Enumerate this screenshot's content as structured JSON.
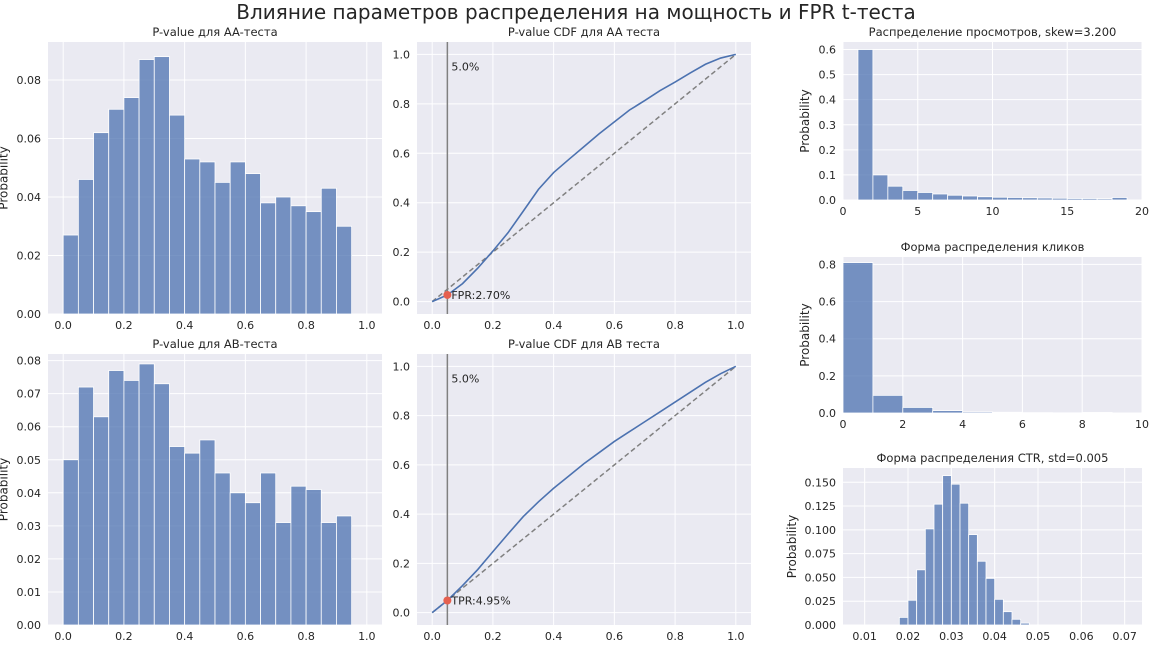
{
  "figure": {
    "title": "Влияние параметров распределения на мощность и FPR t-теста",
    "colors": {
      "face": "#eaeaf2",
      "grid": "#ffffff",
      "bar": "#4c72b0",
      "bar_alpha": 0.75,
      "line": "#4c72b0",
      "diag": "#808080",
      "vline": "#808080",
      "marker": "#e5604f",
      "text": "#262626"
    }
  },
  "chart_data": [
    {
      "id": "pv-hist-aa",
      "type": "bar",
      "title": "P-value для AA-теста",
      "ylabel": "Probability",
      "xlim": [
        -0.05,
        1.05
      ],
      "ylim": [
        0,
        0.093
      ],
      "xticks": [
        0.0,
        0.2,
        0.4,
        0.6,
        0.8,
        1.0
      ],
      "xtick_labels": [
        "0.0",
        "0.2",
        "0.4",
        "0.6",
        "0.8",
        "1.0"
      ],
      "yticks": [
        0.0,
        0.02,
        0.04,
        0.06,
        0.08
      ],
      "ytick_labels": [
        "0.00",
        "0.02",
        "0.04",
        "0.06",
        "0.08"
      ],
      "bin_start": 0.0,
      "bin_width": 0.05,
      "values": [
        0.027,
        0.046,
        0.062,
        0.07,
        0.074,
        0.087,
        0.088,
        0.068,
        0.053,
        0.052,
        0.045,
        0.052,
        0.048,
        0.038,
        0.04,
        0.037,
        0.035,
        0.043,
        0.03
      ]
    },
    {
      "id": "pv-cdf-aa",
      "type": "line",
      "title": "P-value CDF для AA теста",
      "xlim": [
        -0.05,
        1.05
      ],
      "ylim": [
        -0.05,
        1.05
      ],
      "xticks": [
        0.0,
        0.2,
        0.4,
        0.6,
        0.8,
        1.0
      ],
      "xtick_labels": [
        "0.0",
        "0.2",
        "0.4",
        "0.6",
        "0.8",
        "1.0"
      ],
      "yticks": [
        0.0,
        0.2,
        0.4,
        0.6,
        0.8,
        1.0
      ],
      "ytick_labels": [
        "0.0",
        "0.2",
        "0.4",
        "0.6",
        "0.8",
        "1.0"
      ],
      "alpha_line": 0.05,
      "alpha_label": "5.0%",
      "point": {
        "x": 0.05,
        "y": 0.027,
        "label": "FPR:2.70%"
      },
      "diagonal": true,
      "series": [
        {
          "x": [
            0,
            0.05,
            0.1,
            0.15,
            0.2,
            0.25,
            0.3,
            0.35,
            0.4,
            0.45,
            0.5,
            0.55,
            0.6,
            0.65,
            0.7,
            0.75,
            0.8,
            0.85,
            0.9,
            0.95,
            1.0
          ],
          "y": [
            0,
            0.027,
            0.073,
            0.135,
            0.205,
            0.279,
            0.366,
            0.454,
            0.522,
            0.575,
            0.627,
            0.679,
            0.727,
            0.775,
            0.813,
            0.853,
            0.888,
            0.925,
            0.96,
            0.985,
            1.0
          ]
        }
      ]
    },
    {
      "id": "pv-hist-ab",
      "type": "bar",
      "title": "P-value для AB-теста",
      "ylabel": "Probability",
      "xlim": [
        -0.05,
        1.05
      ],
      "ylim": [
        0,
        0.082
      ],
      "xticks": [
        0.0,
        0.2,
        0.4,
        0.6,
        0.8,
        1.0
      ],
      "xtick_labels": [
        "0.0",
        "0.2",
        "0.4",
        "0.6",
        "0.8",
        "1.0"
      ],
      "yticks": [
        0.0,
        0.01,
        0.02,
        0.03,
        0.04,
        0.05,
        0.06,
        0.07,
        0.08
      ],
      "ytick_labels": [
        "0.00",
        "0.01",
        "0.02",
        "0.03",
        "0.04",
        "0.05",
        "0.06",
        "0.07",
        "0.08"
      ],
      "bin_start": 0.0,
      "bin_width": 0.05,
      "values": [
        0.05,
        0.072,
        0.063,
        0.077,
        0.074,
        0.079,
        0.073,
        0.054,
        0.052,
        0.056,
        0.046,
        0.04,
        0.037,
        0.046,
        0.031,
        0.042,
        0.041,
        0.031,
        0.033
      ]
    },
    {
      "id": "pv-cdf-ab",
      "type": "line",
      "title": "P-value CDF для AB теста",
      "xlim": [
        -0.05,
        1.05
      ],
      "ylim": [
        -0.05,
        1.05
      ],
      "xticks": [
        0.0,
        0.2,
        0.4,
        0.6,
        0.8,
        1.0
      ],
      "xtick_labels": [
        "0.0",
        "0.2",
        "0.4",
        "0.6",
        "0.8",
        "1.0"
      ],
      "yticks": [
        0.0,
        0.2,
        0.4,
        0.6,
        0.8,
        1.0
      ],
      "ytick_labels": [
        "0.0",
        "0.2",
        "0.4",
        "0.6",
        "0.8",
        "1.0"
      ],
      "alpha_line": 0.05,
      "alpha_label": "5.0%",
      "point": {
        "x": 0.05,
        "y": 0.0495,
        "label": "TPR:4.95%"
      },
      "diagonal": true,
      "series": [
        {
          "x": [
            0,
            0.05,
            0.1,
            0.15,
            0.2,
            0.25,
            0.3,
            0.35,
            0.4,
            0.45,
            0.5,
            0.55,
            0.6,
            0.65,
            0.7,
            0.75,
            0.8,
            0.85,
            0.9,
            0.95,
            1.0
          ],
          "y": [
            0,
            0.0495,
            0.11,
            0.175,
            0.248,
            0.32,
            0.39,
            0.45,
            0.505,
            0.555,
            0.605,
            0.65,
            0.695,
            0.735,
            0.775,
            0.815,
            0.855,
            0.895,
            0.935,
            0.97,
            1.0
          ]
        }
      ]
    },
    {
      "id": "views-dist",
      "type": "bar",
      "title": "Распределение просмотров, skew=3.200",
      "ylabel": "Probability",
      "xlim": [
        0,
        20
      ],
      "ylim": [
        0,
        0.63
      ],
      "xticks": [
        0,
        5,
        10,
        15,
        20
      ],
      "xtick_labels": [
        "0",
        "5",
        "10",
        "15",
        "20"
      ],
      "yticks": [
        0.0,
        0.1,
        0.2,
        0.3,
        0.4,
        0.5,
        0.6
      ],
      "ytick_labels": [
        "0.0",
        "0.1",
        "0.2",
        "0.3",
        "0.4",
        "0.5",
        "0.6"
      ],
      "bin_start": 1.0,
      "bin_width": 1.0,
      "values": [
        0.6,
        0.1,
        0.055,
        0.038,
        0.03,
        0.024,
        0.019,
        0.016,
        0.013,
        0.011,
        0.01,
        0.009,
        0.008,
        0.007,
        0.006,
        0.006,
        0.005,
        0.01
      ]
    },
    {
      "id": "clicks-dist",
      "type": "bar",
      "title": "Форма распределения кликов",
      "ylabel": "Probability",
      "xlim": [
        0,
        10
      ],
      "ylim": [
        0,
        0.84
      ],
      "xticks": [
        0,
        2,
        4,
        6,
        8,
        10
      ],
      "xtick_labels": [
        "0",
        "2",
        "4",
        "6",
        "8",
        "10"
      ],
      "yticks": [
        0.0,
        0.2,
        0.4,
        0.6,
        0.8
      ],
      "ytick_labels": [
        "0.0",
        "0.2",
        "0.4",
        "0.6",
        "0.8"
      ],
      "bin_start": 0.0,
      "bin_width": 1.0,
      "values": [
        0.81,
        0.095,
        0.03,
        0.013,
        0.006,
        0.004,
        0.002,
        0.001,
        0.003,
        0.0
      ]
    },
    {
      "id": "ctr-dist",
      "type": "bar",
      "title": "Форма распределения CTR, std=0.005",
      "ylabel": "Probability",
      "xlim": [
        0.005,
        0.074
      ],
      "ylim": [
        0,
        0.165
      ],
      "xticks": [
        0.01,
        0.02,
        0.03,
        0.04,
        0.05,
        0.06,
        0.07
      ],
      "xtick_labels": [
        "0.01",
        "0.02",
        "0.03",
        "0.04",
        "0.05",
        "0.06",
        "0.07"
      ],
      "yticks": [
        0.0,
        0.025,
        0.05,
        0.075,
        0.1,
        0.125,
        0.15
      ],
      "ytick_labels": [
        "0.000",
        "0.025",
        "0.050",
        "0.075",
        "0.100",
        "0.125",
        "0.150"
      ],
      "bin_start": 0.018,
      "bin_width": 0.002,
      "values": [
        0.008,
        0.026,
        0.058,
        0.101,
        0.127,
        0.157,
        0.148,
        0.128,
        0.095,
        0.067,
        0.049,
        0.027,
        0.014,
        0.006,
        0.002
      ]
    }
  ]
}
